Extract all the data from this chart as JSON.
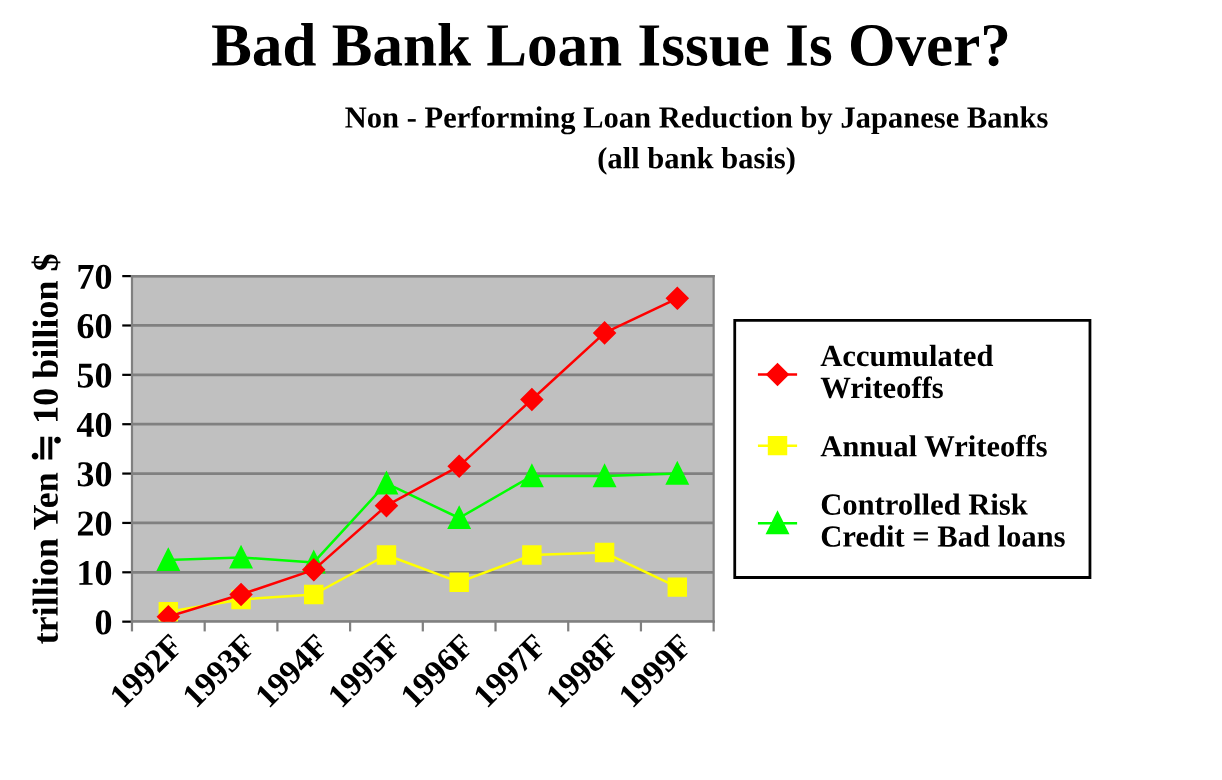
{
  "chart_data": {
    "type": "line",
    "title": "Bad Bank Loan Issue Is Over?",
    "subtitle": "Non - Performing Loan Reduction by Japanese Banks\n(all bank basis)",
    "ylabel": "trillion Yen ≒ 10 billion $",
    "categories": [
      "1992F",
      "1993F",
      "1994F",
      "1995F",
      "1996F",
      "1997F",
      "1998F",
      "1999F"
    ],
    "series": [
      {
        "name": "Accumulated\nWriteoffs",
        "color": "#ff0000",
        "marker": "diamond",
        "values": [
          1,
          5.5,
          10.5,
          23.5,
          31.5,
          45,
          58.5,
          65.5
        ]
      },
      {
        "name": "Annual Writeoffs",
        "color": "#ffff00",
        "marker": "square",
        "values": [
          2,
          4.5,
          5.5,
          13.5,
          8,
          13.5,
          14,
          7
        ]
      },
      {
        "name": "Controlled Risk\nCredit = Bad loans",
        "color": "#00ff00",
        "marker": "triangle",
        "values": [
          12.5,
          13,
          12,
          28,
          21,
          29.5,
          29.5,
          30
        ]
      }
    ],
    "ylim": [
      0,
      70
    ],
    "yticks": [
      0,
      10,
      20,
      30,
      40,
      50,
      60,
      70
    ],
    "grid": "y",
    "legend": "right"
  }
}
